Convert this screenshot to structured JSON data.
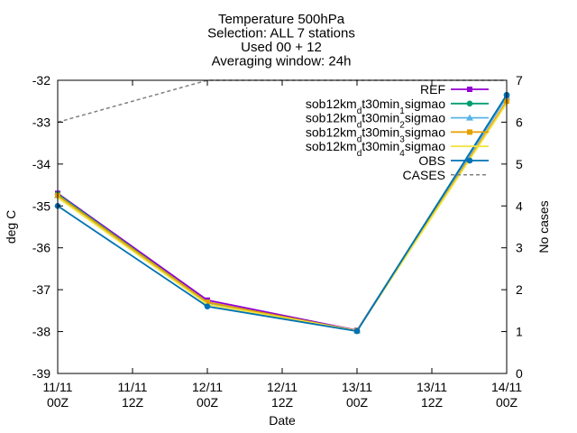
{
  "chart_data": {
    "type": "line",
    "title_lines": [
      "Temperature 500hPa",
      "Selection: ALL      7 stations",
      "Used 00 + 12",
      "Averaging window: 24h"
    ],
    "xlabel": "Date",
    "ylabel": "deg C",
    "y2label": "No cases",
    "ylim": [
      -39,
      -32
    ],
    "y2lim": [
      0,
      7
    ],
    "x_ticks": [
      {
        "line1": "11/11",
        "line2": "00Z"
      },
      {
        "line1": "11/11",
        "line2": "12Z"
      },
      {
        "line1": "12/11",
        "line2": "00Z"
      },
      {
        "line1": "12/11",
        "line2": "12Z"
      },
      {
        "line1": "13/11",
        "line2": "00Z"
      },
      {
        "line1": "13/11",
        "line2": "12Z"
      },
      {
        "line1": "14/11",
        "line2": "00Z"
      }
    ],
    "y_ticks": [
      "-32",
      "-33",
      "-34",
      "-35",
      "-36",
      "-37",
      "-38",
      "-39"
    ],
    "y2_ticks": [
      "7",
      "6",
      "5",
      "4",
      "3",
      "2",
      "1",
      "0"
    ],
    "x": [
      "11/11 00Z",
      "12/11 00Z",
      "13/11 00Z",
      "14/11 00Z"
    ],
    "series": [
      {
        "name": "REF",
        "color": "#9400d3",
        "marker": "square",
        "values": [
          -34.7,
          -37.25,
          -37.97,
          -32.4
        ]
      },
      {
        "name": "sob12kmdt30min1sigmao",
        "legend": {
          "a": "sob12km",
          "sub": "d",
          "b": "t30min",
          "sub2": "1",
          "c": "sigmao"
        },
        "color": "#009e73",
        "marker": "circle",
        "values": [
          -34.72,
          -37.3,
          -37.98,
          -32.35
        ]
      },
      {
        "name": "sob12kmdt30min2sigmao",
        "legend": {
          "a": "sob12km",
          "sub": "d",
          "b": "t30min",
          "sub2": "2",
          "c": "sigmao"
        },
        "color": "#56b4e9",
        "marker": "triangle",
        "values": [
          -34.75,
          -37.32,
          -37.98,
          -32.4
        ]
      },
      {
        "name": "sob12kmdt30min3sigmao",
        "legend": {
          "a": "sob12km",
          "sub": "d",
          "b": "t30min",
          "sub2": "3",
          "c": "sigmao"
        },
        "color": "#e69f00",
        "marker": "square",
        "values": [
          -34.75,
          -37.3,
          -37.98,
          -32.5
        ]
      },
      {
        "name": "sob12kmdt30min4sigmao",
        "legend": {
          "a": "sob12km",
          "sub": "d",
          "b": "t30min",
          "sub2": "4",
          "c": "sigmao"
        },
        "color": "#f0e442",
        "marker": "none",
        "values": [
          -34.8,
          -37.35,
          -37.98,
          -32.55
        ]
      },
      {
        "name": "OBS",
        "color": "#0072b2",
        "marker": "circle",
        "values": [
          -35.0,
          -37.4,
          -37.99,
          -32.35
        ]
      },
      {
        "name": "CASES",
        "color": "#808080",
        "marker": "none",
        "dashed": true,
        "axis": "y2",
        "values": [
          6,
          7,
          7,
          7
        ]
      }
    ],
    "grid": false,
    "legend_position": "top-right"
  }
}
